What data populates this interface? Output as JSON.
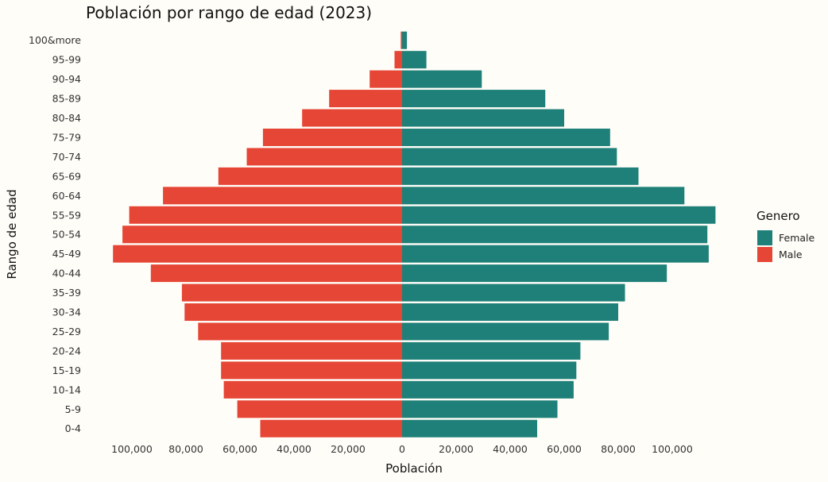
{
  "chart_data": {
    "type": "bar",
    "orientation": "horizontal",
    "title": "Población por rango de edad (2023)",
    "xlabel": "Población",
    "ylabel": "Rango de edad",
    "xlim": [
      -114000,
      116000
    ],
    "x_ticks": [
      -100000,
      -80000,
      -60000,
      -40000,
      -20000,
      0,
      20000,
      40000,
      60000,
      80000,
      100000
    ],
    "x_tick_labels": [
      "100,000",
      "80,000",
      "60,000",
      "40,000",
      "20,000",
      "0",
      "20,000",
      "40,000",
      "60,000",
      "80,000",
      "100,000"
    ],
    "categories": [
      "0-4",
      "5-9",
      "10-14",
      "15-19",
      "20-24",
      "25-29",
      "30-34",
      "35-39",
      "40-44",
      "45-49",
      "50-54",
      "55-59",
      "60-64",
      "65-69",
      "70-74",
      "75-79",
      "80-84",
      "85-89",
      "90-94",
      "95-99",
      "100&more"
    ],
    "series": [
      {
        "name": "Female",
        "color": "#1e8078",
        "values": [
          50000,
          57500,
          63500,
          64500,
          66000,
          76500,
          80000,
          82500,
          98000,
          113500,
          113000,
          116000,
          104500,
          87500,
          79500,
          77000,
          60000,
          53000,
          29500,
          9000,
          1800
        ]
      },
      {
        "name": "Male",
        "color": "#e64636",
        "values": [
          52500,
          61000,
          66000,
          67000,
          67000,
          75500,
          80500,
          81500,
          93000,
          107000,
          103500,
          101000,
          88500,
          68000,
          57500,
          51500,
          37000,
          27000,
          12000,
          2800,
          500
        ]
      }
    ],
    "legend": {
      "title": "Genero",
      "position": "right",
      "entries": [
        "Female",
        "Male"
      ]
    },
    "grid": false
  }
}
